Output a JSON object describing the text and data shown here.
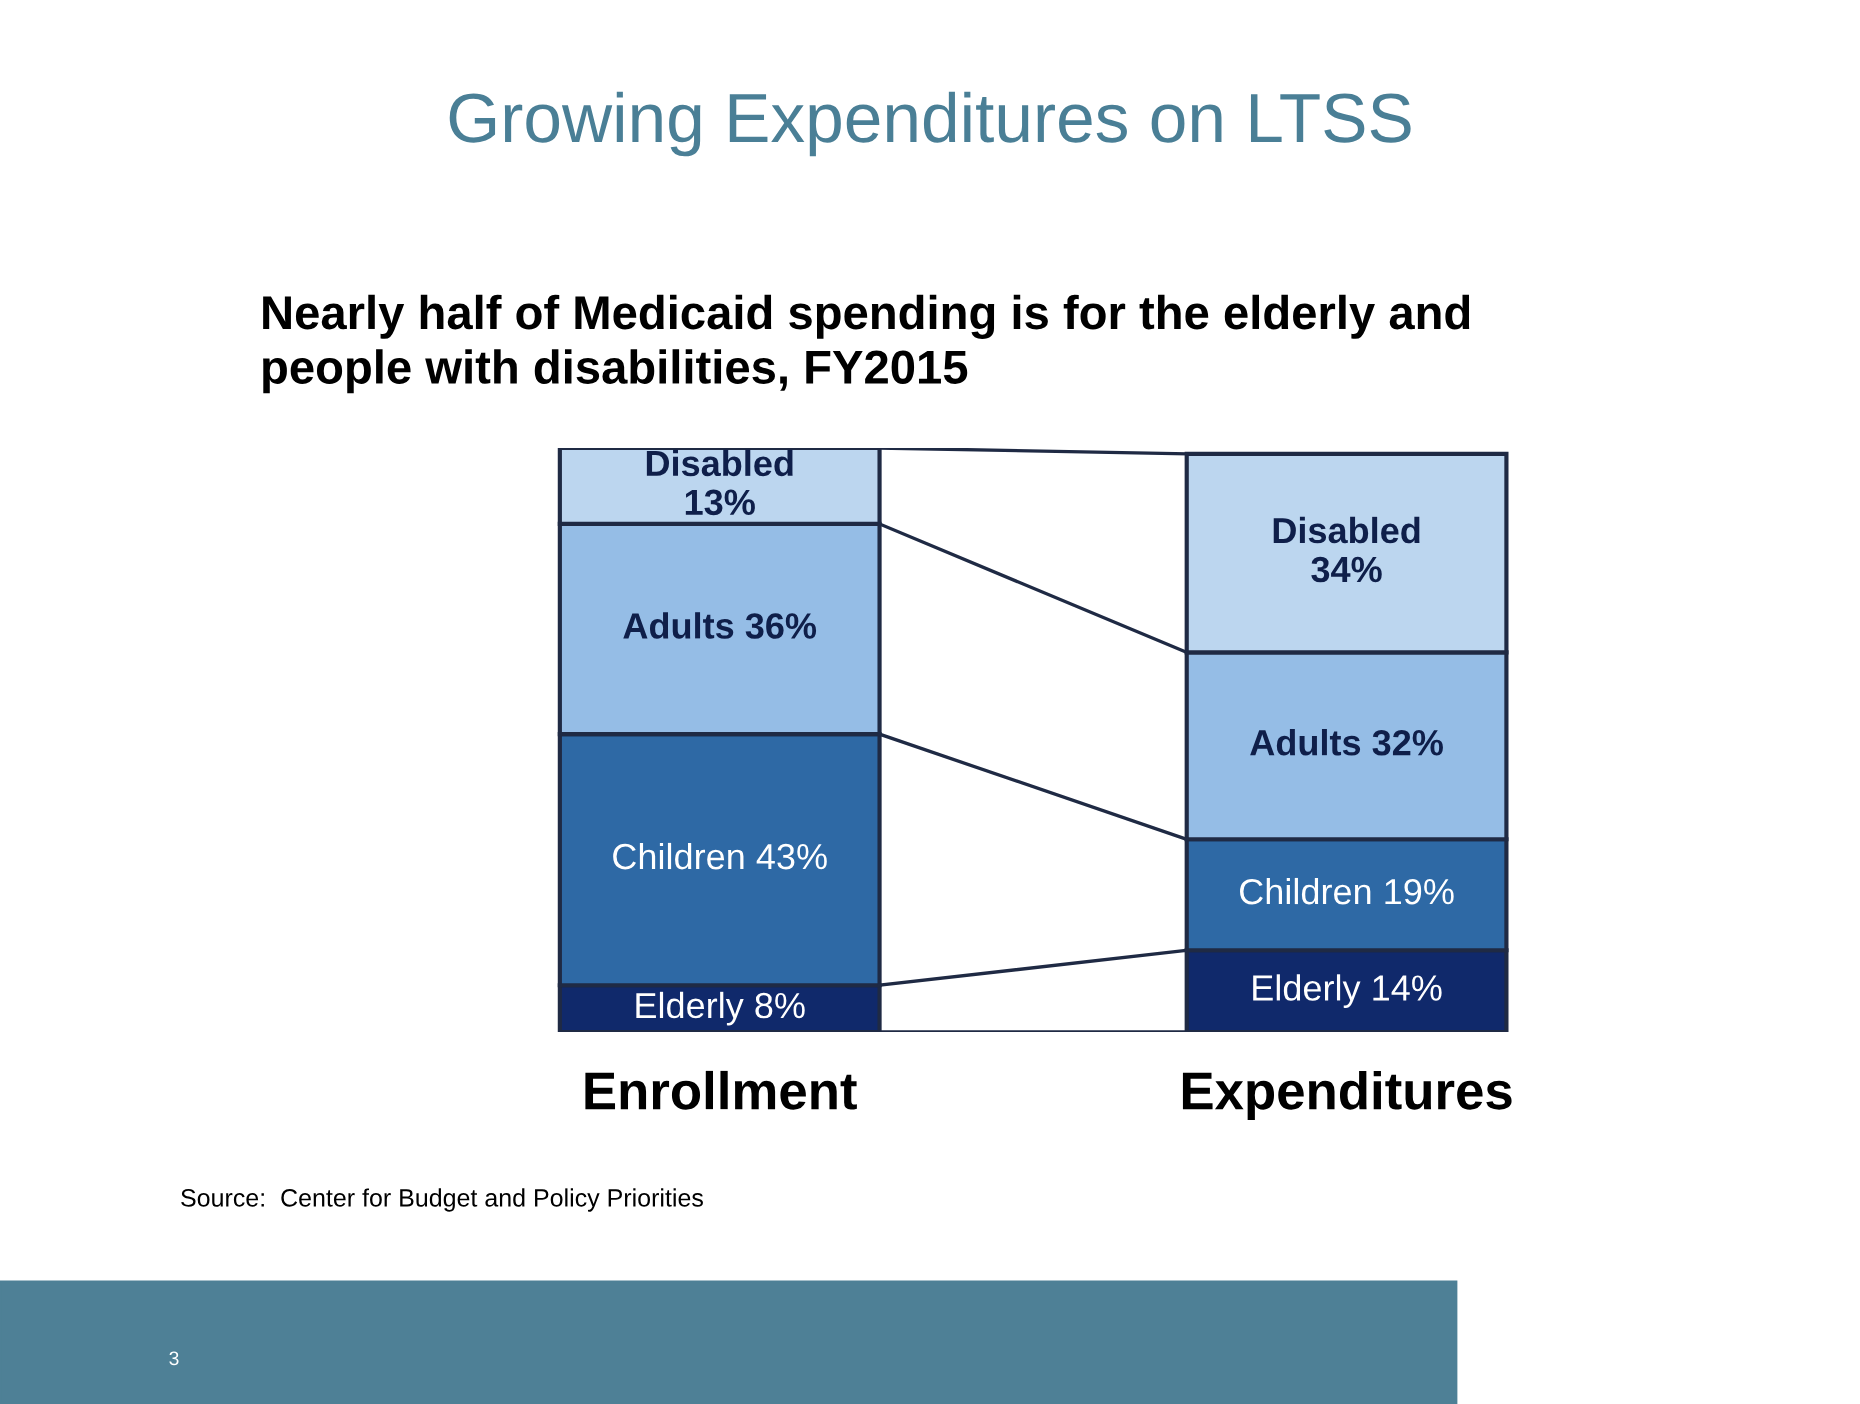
{
  "chart_data": {
    "type": "bar",
    "stacked": true,
    "title": "Growing Expenditures on LTSS",
    "subtitle": "Nearly half of Medicaid spending is for the elderly and\npeople with disabilities, FY2015",
    "categories": [
      "Enrollment",
      "Expenditures"
    ],
    "series": [
      {
        "color": "#10296b",
        "values": [
          8,
          14
        ],
        "value_labels": [
          "Elderly 8%",
          "Elderly 14%"
        ]
      },
      {
        "color": "#2e69a5",
        "values": [
          43,
          19
        ],
        "value_labels": [
          "Children 43%",
          "Children 19%"
        ]
      },
      {
        "color": "#95bde6",
        "values": [
          36,
          32
        ],
        "value_labels": [
          "Adults 36%",
          "Adults 32%"
        ]
      },
      {
        "color": "#bcd6ef",
        "values": [
          13,
          34
        ],
        "value_labels": [
          "Disabled\n13%",
          "Disabled\n34%"
        ]
      }
    ],
    "annotations": [
      "Source:  Center for Budget and Policy Priorities",
      "3"
    ],
    "legend": false,
    "grid": false
  }
}
